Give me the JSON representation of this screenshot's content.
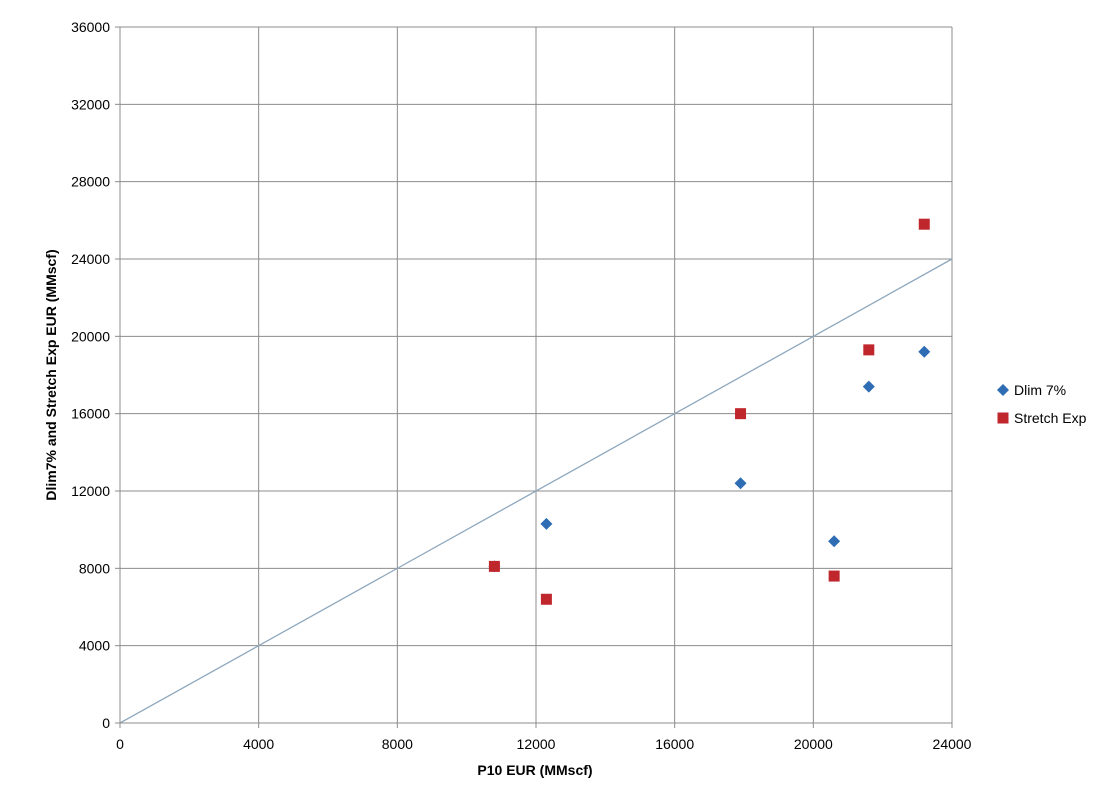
{
  "chart_data": {
    "type": "scatter",
    "xlabel": "P10 EUR (MMscf)",
    "ylabel": "Dlim7% and Stretch Exp EUR (MMscf)",
    "xlim": [
      0,
      24000
    ],
    "ylim": [
      0,
      36000
    ],
    "x_ticks": [
      "0",
      "4000",
      "8000",
      "12000",
      "16000",
      "20000",
      "24000"
    ],
    "y_ticks": [
      "0",
      "4000",
      "8000",
      "12000",
      "16000",
      "20000",
      "24000",
      "28000",
      "32000",
      "36000"
    ],
    "grid": true,
    "legend_position": "right",
    "reference_line": {
      "from": [
        0,
        0
      ],
      "to": [
        24000,
        24000
      ],
      "color": "#8fa8bd"
    },
    "series": [
      {
        "name": "Dlim 7%",
        "marker": "diamond",
        "color": "#2e6db4",
        "points": [
          {
            "x": 10800,
            "y": 8100
          },
          {
            "x": 12300,
            "y": 10300
          },
          {
            "x": 17900,
            "y": 12400
          },
          {
            "x": 20600,
            "y": 9400
          },
          {
            "x": 21600,
            "y": 17400
          },
          {
            "x": 23200,
            "y": 19200
          }
        ]
      },
      {
        "name": "Stretch Exp",
        "marker": "square",
        "color": "#c0272d",
        "points": [
          {
            "x": 10800,
            "y": 8100
          },
          {
            "x": 12300,
            "y": 6400
          },
          {
            "x": 17900,
            "y": 16000
          },
          {
            "x": 20600,
            "y": 7600
          },
          {
            "x": 21600,
            "y": 19300
          },
          {
            "x": 23200,
            "y": 25800
          }
        ]
      }
    ]
  }
}
